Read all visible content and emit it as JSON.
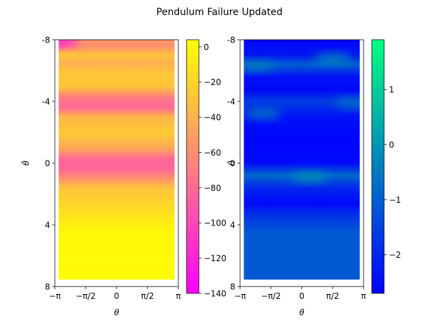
{
  "figure": {
    "title": "Pendulum Failure Updated"
  },
  "chart_data": [
    {
      "type": "heatmap",
      "title": "",
      "xlabel": "θ",
      "ylabel": "θ̇",
      "xlim": [
        -3.1416,
        3.1416
      ],
      "ylim": [
        -8,
        8
      ],
      "y_inverted": true,
      "x_ticks": [
        {
          "value": -3.1416,
          "label": "−π"
        },
        {
          "value": -1.5708,
          "label": "−π/2"
        },
        {
          "value": 0,
          "label": "0"
        },
        {
          "value": 1.5708,
          "label": "π/2"
        },
        {
          "value": 3.1416,
          "label": "π"
        }
      ],
      "y_ticks": [
        {
          "value": -8,
          "label": "-8"
        },
        {
          "value": -4,
          "label": "-4"
        },
        {
          "value": 0,
          "label": "0"
        },
        {
          "value": 4,
          "label": "4"
        },
        {
          "value": 8,
          "label": "8"
        }
      ],
      "data_extent": {
        "x": [
          -2.95,
          2.95
        ],
        "y": [
          -8,
          7.55
        ]
      },
      "colormap": "spring",
      "colormap_stops": [
        "#ff00ff",
        "#ffff00"
      ],
      "colorbar": {
        "range": [
          -140,
          4
        ],
        "ticks": [
          {
            "value": 0,
            "label": "0"
          },
          {
            "value": -20,
            "label": "−20"
          },
          {
            "value": -40,
            "label": "−40"
          },
          {
            "value": -60,
            "label": "−60"
          },
          {
            "value": -80,
            "label": "−80"
          },
          {
            "value": -100,
            "label": "−100"
          },
          {
            "value": -120,
            "label": "−120"
          },
          {
            "value": -140,
            "label": "−140"
          }
        ]
      },
      "bands": [
        {
          "y": -8,
          "value": -55
        },
        {
          "y": -7.6,
          "value": -58
        },
        {
          "y": -7.0,
          "value": -30
        },
        {
          "y": -6.5,
          "value": -40
        },
        {
          "y": -5.8,
          "value": -28
        },
        {
          "y": -5.0,
          "value": -28
        },
        {
          "y": -4.2,
          "value": -72
        },
        {
          "y": -3.6,
          "value": -80
        },
        {
          "y": -3.0,
          "value": -38
        },
        {
          "y": -2.0,
          "value": -26
        },
        {
          "y": -1.0,
          "value": -44
        },
        {
          "y": -0.3,
          "value": -80
        },
        {
          "y": 0.3,
          "value": -84
        },
        {
          "y": 0.9,
          "value": -62
        },
        {
          "y": 1.6,
          "value": -30
        },
        {
          "y": 2.6,
          "value": -20
        },
        {
          "y": 3.4,
          "value": -12
        },
        {
          "y": 4.5,
          "value": 0
        },
        {
          "y": 7.55,
          "value": 2
        }
      ],
      "hotspots": [
        {
          "x": -2.9,
          "y": -7.9,
          "value": -140
        }
      ]
    },
    {
      "type": "heatmap",
      "title": "",
      "xlabel": "θ",
      "ylabel": "θ̇",
      "xlim": [
        -3.1416,
        3.1416
      ],
      "ylim": [
        -8,
        8
      ],
      "y_inverted": true,
      "x_ticks": [
        {
          "value": -3.1416,
          "label": "−π"
        },
        {
          "value": -1.5708,
          "label": "−π/2"
        },
        {
          "value": 0,
          "label": "0"
        },
        {
          "value": 1.5708,
          "label": "π/2"
        },
        {
          "value": 3.1416,
          "label": "π"
        }
      ],
      "y_ticks": [
        {
          "value": -8,
          "label": "-8"
        },
        {
          "value": -4,
          "label": "-4"
        },
        {
          "value": 0,
          "label": "0"
        },
        {
          "value": 4,
          "label": "4"
        },
        {
          "value": 8,
          "label": "8"
        }
      ],
      "data_extent": {
        "x": [
          -2.95,
          2.95
        ],
        "y": [
          -8,
          7.55
        ]
      },
      "colormap": "winter",
      "colormap_stops": [
        "#0000ff",
        "#00ff80"
      ],
      "colorbar": {
        "range": [
          -2.7,
          1.9
        ],
        "ticks": [
          {
            "value": 1,
            "label": "1"
          },
          {
            "value": 0,
            "label": "0"
          },
          {
            "value": -1,
            "label": "−1"
          },
          {
            "value": -2,
            "label": "−2"
          }
        ]
      },
      "bands": [
        {
          "y": -8,
          "value": -2.6
        },
        {
          "y": -7.0,
          "value": -2.3
        },
        {
          "y": -6.4,
          "value": -1.0
        },
        {
          "y": -5.6,
          "value": -2.4
        },
        {
          "y": -4.8,
          "value": -2.6
        },
        {
          "y": -4.0,
          "value": -1.6
        },
        {
          "y": -3.0,
          "value": -2.4
        },
        {
          "y": -1.5,
          "value": -2.65
        },
        {
          "y": 0,
          "value": -2.5
        },
        {
          "y": 0.8,
          "value": -0.8
        },
        {
          "y": 1.6,
          "value": -2.0
        },
        {
          "y": 2.6,
          "value": -2.55
        },
        {
          "y": 3.4,
          "value": -1.8
        },
        {
          "y": 4.5,
          "value": -1.1
        },
        {
          "y": 7.55,
          "value": -1.1
        }
      ],
      "hotspots": [
        {
          "x": 1.6,
          "y": -6.8,
          "value": 0.0
        },
        {
          "x": -2.3,
          "y": -6.3,
          "value": -0.3
        },
        {
          "x": -2.0,
          "y": -3.2,
          "value": -0.2
        },
        {
          "x": 2.6,
          "y": -3.9,
          "value": -0.5
        },
        {
          "x": 0.4,
          "y": 0.9,
          "value": 0.0
        }
      ]
    }
  ]
}
